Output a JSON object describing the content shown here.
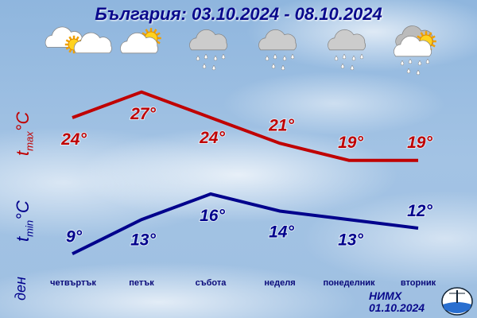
{
  "title": "България: 03.10.2024 - 08.10.2024",
  "colors": {
    "tmax": "#c00000",
    "tmin": "#00008c",
    "title": "#0a0a8c"
  },
  "icons": [
    "partly-cloudy-sun-icon",
    "sun-behind-cloud-icon",
    "rain-cloud-icon",
    "rain-cloud-icon",
    "rain-cloud-icon",
    "sun-cloud-rain-icon"
  ],
  "labels": {
    "tmax_main": "t",
    "tmax_sub": "max",
    "tmin_main": "t",
    "tmin_sub": "min",
    "unit": "°C",
    "day": "ден"
  },
  "footer": {
    "org": "НИМХ",
    "date": "01.10.2024"
  },
  "chart_data": {
    "type": "line",
    "categories": [
      "четвъртък",
      "петък",
      "събота",
      "неделя",
      "понеделник",
      "вторник"
    ],
    "series": [
      {
        "name": "tmax °C",
        "values": [
          24,
          27,
          24,
          21,
          19,
          19
        ],
        "labels": [
          "24°",
          "27°",
          "24°",
          "21°",
          "19°",
          "19°"
        ]
      },
      {
        "name": "tmin °C",
        "values": [
          9,
          13,
          16,
          14,
          13,
          12
        ],
        "labels": [
          "9°",
          "13°",
          "16°",
          "14°",
          "13°",
          "12°"
        ]
      }
    ]
  }
}
